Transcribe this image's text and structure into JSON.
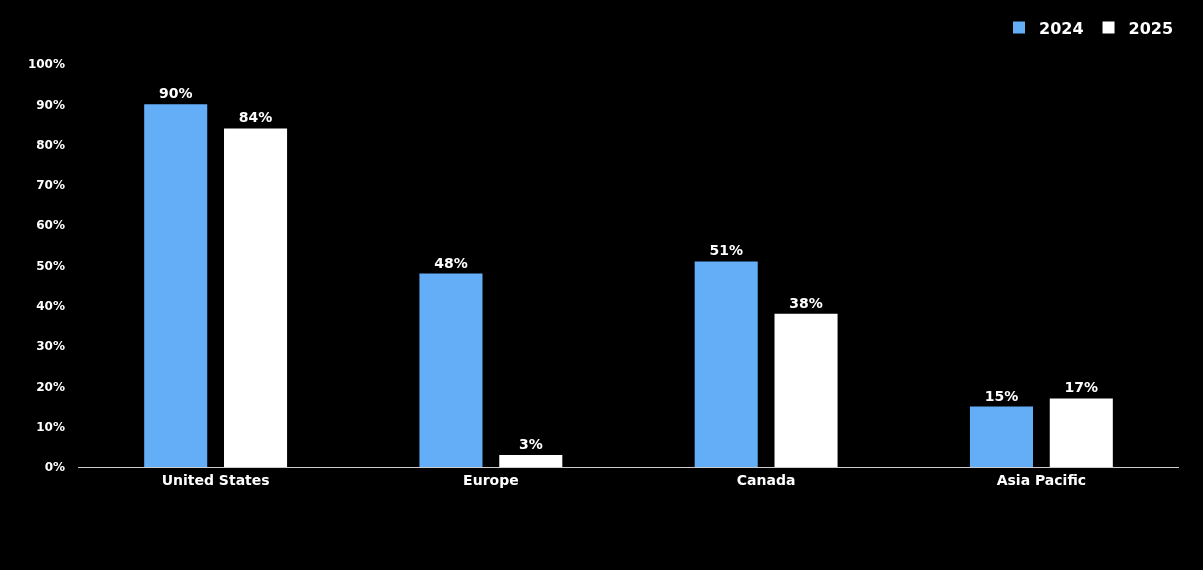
{
  "chart_data": {
    "type": "bar",
    "categories": [
      "United States",
      "Europe",
      "Canada",
      "Asia Pacific"
    ],
    "series": [
      {
        "name": "2024",
        "color": "#64aef8",
        "values": [
          90,
          48,
          51,
          15
        ],
        "value_labels": [
          "90%",
          "48%",
          "51%",
          "15%"
        ]
      },
      {
        "name": "2025",
        "color": "#ffffff",
        "values": [
          84,
          3,
          38,
          17
        ],
        "value_labels": [
          "84%",
          "3%",
          "38%",
          "17%"
        ]
      }
    ],
    "ylim": [
      0,
      100
    ],
    "yticks": [
      {
        "value": 0,
        "label": "0%"
      },
      {
        "value": 10,
        "label": "10%"
      },
      {
        "value": 20,
        "label": "20%"
      },
      {
        "value": 30,
        "label": "30%"
      },
      {
        "value": 40,
        "label": "40%"
      },
      {
        "value": 50,
        "label": "50%"
      },
      {
        "value": 60,
        "label": "60%"
      },
      {
        "value": 70,
        "label": "70%"
      },
      {
        "value": 80,
        "label": "80%"
      },
      {
        "value": 90,
        "label": "90%"
      },
      {
        "value": 100,
        "label": "100%"
      }
    ],
    "legend": "top right"
  }
}
